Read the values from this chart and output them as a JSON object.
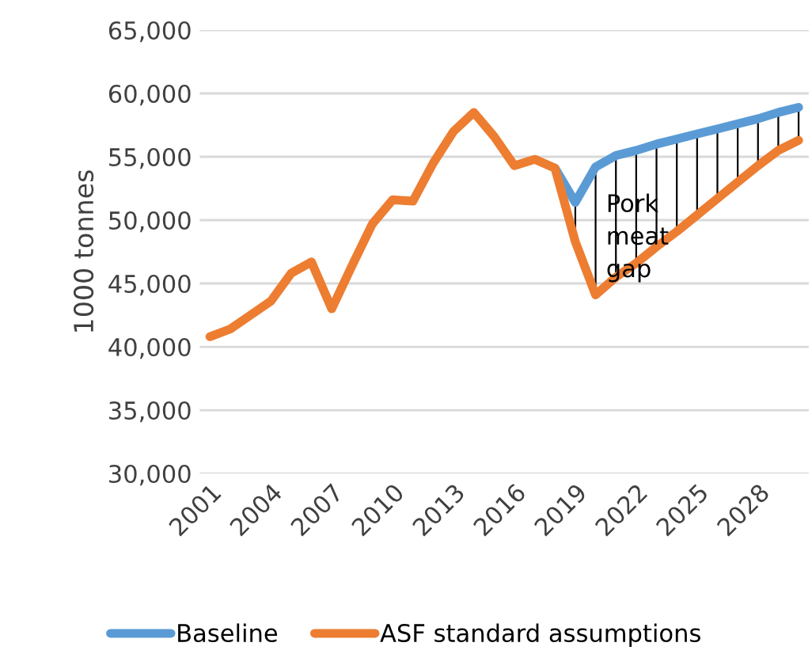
{
  "chart_data": {
    "type": "line",
    "ylabel": "1000 tonnes",
    "categories": [
      "2001",
      null,
      null,
      "2004",
      null,
      null,
      "2007",
      null,
      null,
      "2010",
      null,
      null,
      "2013",
      null,
      null,
      "2016",
      null,
      null,
      "2019",
      null,
      null,
      "2022",
      null,
      null,
      "2025",
      null,
      null,
      "2028",
      null,
      null
    ],
    "series": [
      {
        "name": "Baseline",
        "color": "#5b9bd5",
        "values": [
          null,
          null,
          null,
          null,
          null,
          null,
          null,
          null,
          null,
          null,
          null,
          null,
          null,
          null,
          null,
          null,
          null,
          54100,
          51400,
          54200,
          55100,
          55500,
          56000,
          56400,
          56800,
          57200,
          57600,
          58000,
          58500,
          58900
        ]
      },
      {
        "name": "ASF standard assumptions",
        "color": "#ed7d31",
        "values": [
          40800,
          41400,
          42500,
          43600,
          45800,
          46700,
          43000,
          46400,
          49700,
          51600,
          51500,
          54500,
          57000,
          58500,
          56600,
          54300,
          54800,
          54100,
          48300,
          44100,
          45500,
          46600,
          47900,
          49100,
          50400,
          51700,
          53000,
          54300,
          55500,
          56300
        ]
      }
    ],
    "ylim": [
      30000,
      65000
    ],
    "yticks": [
      {
        "value": 30000,
        "label": "30,000"
      },
      {
        "value": 35000,
        "label": "35,000"
      },
      {
        "value": 40000,
        "label": "40,000"
      },
      {
        "value": 45000,
        "label": "45,000"
      },
      {
        "value": 50000,
        "label": "50,000"
      },
      {
        "value": 55000,
        "label": "55,000"
      },
      {
        "value": 60000,
        "label": "60,000"
      },
      {
        "value": 65000,
        "label": "65,000"
      }
    ],
    "annotations": [
      {
        "text": "Pork\nmeat\ngap",
        "x": "2019",
        "y": 48600
      }
    ],
    "grid": "y",
    "legend": "bottom",
    "marker": "none",
    "line_style": "solid"
  }
}
